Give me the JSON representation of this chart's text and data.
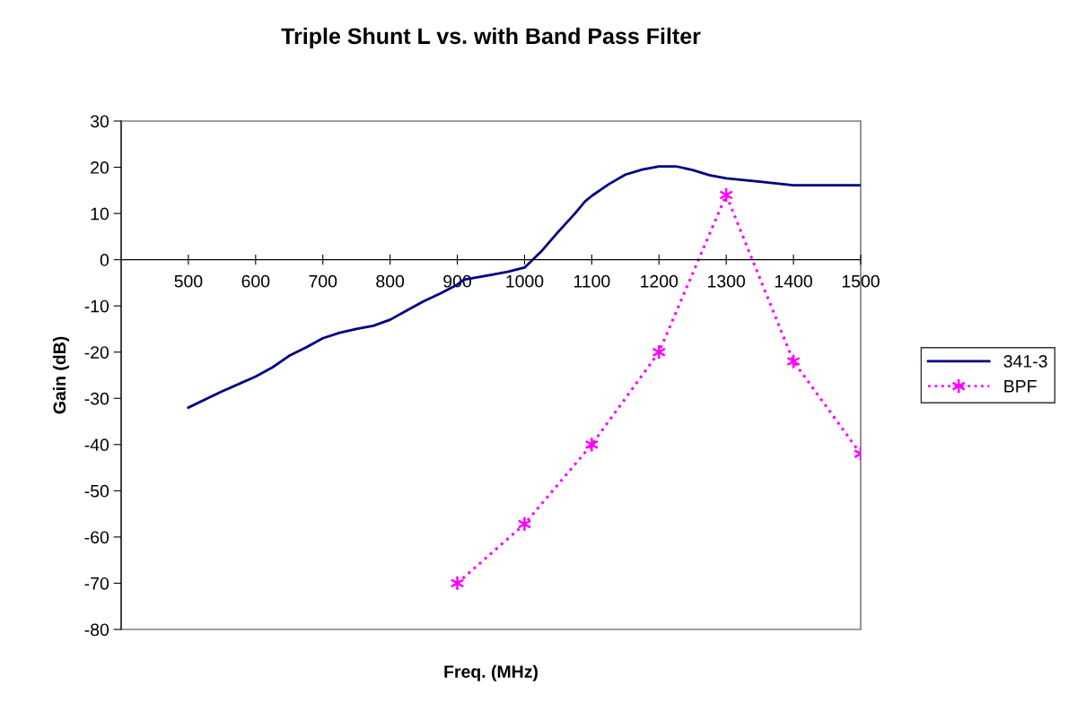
{
  "chart_data": {
    "type": "line",
    "title": "Triple Shunt L vs. with Band Pass Filter",
    "xlabel": "Freq. (MHz)",
    "ylabel": "Gain (dB)",
    "xlim": [
      400,
      1500
    ],
    "xticks": [
      500,
      600,
      700,
      800,
      900,
      1000,
      1100,
      1200,
      1300,
      1400,
      1500
    ],
    "ylim": [
      -80,
      30
    ],
    "yticks": [
      -80,
      -70,
      -60,
      -50,
      -40,
      -30,
      -20,
      -10,
      0,
      10,
      20,
      30
    ],
    "grid": false,
    "legend": "right",
    "series": [
      {
        "name": "341-3",
        "color": "#000080",
        "marker": "none",
        "line_style": "solid",
        "x": [
          500,
          550,
          600,
          625,
          650,
          675,
          700,
          725,
          750,
          775,
          800,
          825,
          850,
          875,
          900,
          910,
          950,
          975,
          1000,
          1010,
          1025,
          1050,
          1075,
          1090,
          1100,
          1125,
          1150,
          1175,
          1200,
          1225,
          1250,
          1275,
          1300,
          1350,
          1400,
          1450,
          1500
        ],
        "values": [
          -32,
          -28.5,
          -25.3,
          -23.3,
          -20.8,
          -19,
          -17,
          -15.8,
          -15,
          -14.3,
          -13,
          -11,
          -9,
          -7.3,
          -5.4,
          -4.3,
          -3.3,
          -2.6,
          -1.7,
          -0.3,
          1.8,
          6,
          10,
          12.6,
          13.8,
          16.3,
          18.4,
          19.5,
          20.2,
          20.2,
          19.4,
          18.3,
          17.6,
          16.9,
          16.1,
          16.1,
          16.1
        ]
      },
      {
        "name": "BPF",
        "color": "#ff00ff",
        "marker": "cross",
        "line_style": "dotted",
        "x": [
          900,
          1000,
          1100,
          1200,
          1300,
          1400,
          1500
        ],
        "values": [
          -70,
          -57.2,
          -40,
          -20,
          14,
          -22,
          -42
        ]
      }
    ]
  }
}
